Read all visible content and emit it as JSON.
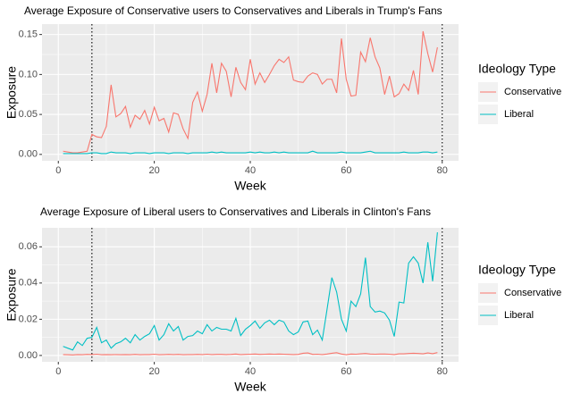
{
  "chart_data": [
    {
      "type": "line",
      "title": "Average Exposure of Conservative users to Conservatives and Liberals in Trump's Fans",
      "x_label": "Week",
      "y_label": "Exposure",
      "legend_title": "Ideology Type",
      "x": [
        1,
        2,
        3,
        4,
        5,
        6,
        7,
        8,
        9,
        10,
        11,
        12,
        13,
        14,
        15,
        16,
        17,
        18,
        19,
        20,
        21,
        22,
        23,
        24,
        25,
        26,
        27,
        28,
        29,
        30,
        31,
        32,
        33,
        34,
        35,
        36,
        37,
        38,
        39,
        40,
        41,
        42,
        43,
        44,
        45,
        46,
        47,
        48,
        49,
        50,
        51,
        52,
        53,
        54,
        55,
        56,
        57,
        58,
        59,
        60,
        61,
        62,
        63,
        64,
        65,
        66,
        67,
        68,
        69,
        70,
        71,
        72,
        73,
        74,
        75,
        76,
        77,
        78,
        79
      ],
      "series": [
        {
          "name": "Conservative",
          "color": "#F8766D",
          "values": [
            0.004,
            0.003,
            0.002,
            0.002,
            0.003,
            0.004,
            0.025,
            0.022,
            0.021,
            0.035,
            0.087,
            0.047,
            0.051,
            0.06,
            0.034,
            0.049,
            0.044,
            0.055,
            0.038,
            0.059,
            0.042,
            0.045,
            0.028,
            0.052,
            0.05,
            0.032,
            0.02,
            0.065,
            0.078,
            0.054,
            0.075,
            0.114,
            0.077,
            0.114,
            0.104,
            0.072,
            0.109,
            0.09,
            0.081,
            0.119,
            0.088,
            0.102,
            0.09,
            0.1,
            0.111,
            0.119,
            0.115,
            0.122,
            0.093,
            0.091,
            0.09,
            0.098,
            0.102,
            0.1,
            0.088,
            0.094,
            0.094,
            0.077,
            0.145,
            0.094,
            0.073,
            0.074,
            0.128,
            0.116,
            0.146,
            0.122,
            0.108,
            0.075,
            0.098,
            0.072,
            0.076,
            0.088,
            0.08,
            0.105,
            0.075,
            0.154,
            0.126,
            0.103,
            0.134
          ]
        },
        {
          "name": "Liberal",
          "color": "#00BFC4",
          "values": [
            0.001,
            0.001,
            0.001,
            0.001,
            0.001,
            0.001,
            0.002,
            0.002,
            0.001,
            0.001,
            0.003,
            0.002,
            0.002,
            0.002,
            0.001,
            0.002,
            0.002,
            0.002,
            0.001,
            0.002,
            0.002,
            0.002,
            0.001,
            0.002,
            0.002,
            0.002,
            0.001,
            0.002,
            0.002,
            0.002,
            0.002,
            0.003,
            0.002,
            0.003,
            0.002,
            0.002,
            0.002,
            0.002,
            0.002,
            0.003,
            0.002,
            0.003,
            0.002,
            0.002,
            0.003,
            0.002,
            0.003,
            0.002,
            0.002,
            0.002,
            0.002,
            0.002,
            0.004,
            0.002,
            0.002,
            0.002,
            0.002,
            0.002,
            0.003,
            0.002,
            0.002,
            0.002,
            0.002,
            0.003,
            0.004,
            0.002,
            0.002,
            0.002,
            0.002,
            0.002,
            0.002,
            0.003,
            0.002,
            0.002,
            0.002,
            0.003,
            0.003,
            0.002,
            0.003
          ]
        }
      ],
      "xlim": [
        -3.4,
        83.4
      ],
      "xticks": [
        0,
        20,
        40,
        60,
        80
      ],
      "ylim": [
        -0.008,
        0.163
      ],
      "yticks": [
        {
          "value": 0,
          "label": "0.00"
        },
        {
          "value": 0.05,
          "label": "0.05"
        },
        {
          "value": 0.1,
          "label": "0.10"
        },
        0.15
      ],
      "vlines": [
        7,
        80
      ],
      "grid": true
    },
    {
      "type": "line",
      "title": "Average Exposure of Liberal users to Conservatives and Liberals in Clinton's Fans",
      "x_label": "Week",
      "y_label": "Exposure",
      "legend_title": "Ideology Type",
      "x": [
        1,
        2,
        3,
        4,
        5,
        6,
        7,
        8,
        9,
        10,
        11,
        12,
        13,
        14,
        15,
        16,
        17,
        18,
        19,
        20,
        21,
        22,
        23,
        24,
        25,
        26,
        27,
        28,
        29,
        30,
        31,
        32,
        33,
        34,
        35,
        36,
        37,
        38,
        39,
        40,
        41,
        42,
        43,
        44,
        45,
        46,
        47,
        48,
        49,
        50,
        51,
        52,
        53,
        54,
        55,
        56,
        57,
        58,
        59,
        60,
        61,
        62,
        63,
        64,
        65,
        66,
        67,
        68,
        69,
        70,
        71,
        72,
        73,
        74,
        75,
        76,
        77,
        78,
        79
      ],
      "series": [
        {
          "name": "Conservative",
          "color": "#F8766D",
          "values": [
            0.0005,
            0.0004,
            0.0003,
            0.0005,
            0.0004,
            0.0006,
            0.0005,
            0.0007,
            0.0004,
            0.0005,
            0.0004,
            0.0005,
            0.0004,
            0.0005,
            0.0004,
            0.0006,
            0.0004,
            0.0005,
            0.0005,
            0.0007,
            0.0004,
            0.0005,
            0.0006,
            0.0005,
            0.0006,
            0.0004,
            0.0005,
            0.0005,
            0.0006,
            0.0005,
            0.0007,
            0.0005,
            0.0006,
            0.0006,
            0.0005,
            0.0006,
            0.0008,
            0.0005,
            0.0006,
            0.0007,
            0.0008,
            0.0006,
            0.0007,
            0.0008,
            0.0007,
            0.0008,
            0.0007,
            0.0006,
            0.0005,
            0.0006,
            0.0012,
            0.0014,
            0.0006,
            0.0007,
            0.0005,
            0.0008,
            0.0012,
            0.0015,
            0.0008,
            0.0004,
            0.0008,
            0.0007,
            0.0009,
            0.0011,
            0.0008,
            0.0007,
            0.0008,
            0.0008,
            0.0007,
            0.0005,
            0.0009,
            0.0009,
            0.0011,
            0.0012,
            0.0011,
            0.0009,
            0.0014,
            0.001,
            0.0016
          ]
        },
        {
          "name": "Liberal",
          "color": "#00BFC4",
          "values": [
            0.005,
            0.004,
            0.003,
            0.0075,
            0.0055,
            0.0095,
            0.01,
            0.0155,
            0.007,
            0.0085,
            0.004,
            0.0065,
            0.0075,
            0.0095,
            0.007,
            0.0115,
            0.0085,
            0.0105,
            0.012,
            0.0165,
            0.0085,
            0.0115,
            0.0175,
            0.0135,
            0.016,
            0.0085,
            0.0105,
            0.011,
            0.0135,
            0.012,
            0.017,
            0.0135,
            0.0155,
            0.0145,
            0.0145,
            0.0135,
            0.0205,
            0.011,
            0.0145,
            0.0165,
            0.019,
            0.015,
            0.018,
            0.0195,
            0.017,
            0.0195,
            0.0185,
            0.0135,
            0.0115,
            0.013,
            0.0185,
            0.019,
            0.0115,
            0.014,
            0.0085,
            0.0255,
            0.043,
            0.035,
            0.02,
            0.0135,
            0.03,
            0.027,
            0.034,
            0.054,
            0.027,
            0.024,
            0.0245,
            0.0235,
            0.0195,
            0.0105,
            0.0295,
            0.029,
            0.051,
            0.0545,
            0.051,
            0.04,
            0.0625,
            0.041,
            0.068
          ]
        }
      ],
      "xlim": [
        -3.4,
        83.4
      ],
      "xticks": [
        0,
        20,
        40,
        60,
        80
      ],
      "ylim": [
        -0.0035,
        0.0705
      ],
      "yticks": [
        {
          "value": 0,
          "label": "0.00"
        },
        {
          "value": 0.02,
          "label": "0.02"
        },
        {
          "value": 0.04,
          "label": "0.04"
        },
        {
          "value": 0.06,
          "label": "0.06"
        }
      ],
      "vlines": [
        7,
        80
      ],
      "grid": true
    }
  ]
}
